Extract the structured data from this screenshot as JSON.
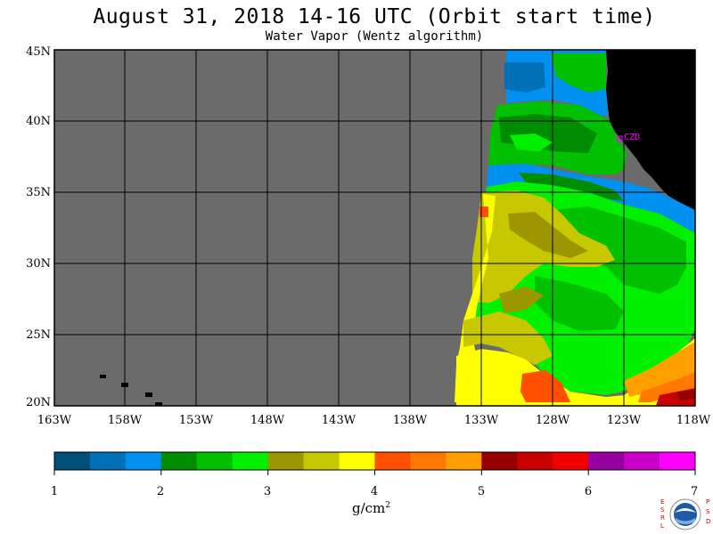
{
  "title": "August 31, 2018  14-16 UTC  (Orbit start time)",
  "subtitle": "Water Vapor (Wentz algorithm)",
  "map": {
    "lat_labels": [
      "45N",
      "40N",
      "35N",
      "30N",
      "25N",
      "20N"
    ],
    "lon_labels": [
      "163W",
      "158W",
      "153W",
      "148W",
      "143W",
      "138W",
      "133W",
      "128W",
      "123W",
      "118W"
    ],
    "station_label": "CZD",
    "colors": {
      "no_data": "#6b6b6b",
      "land": "#000000",
      "grid": "#000000",
      "station": "#ff00ff"
    }
  },
  "colorbar": {
    "tick_labels": [
      "1",
      "2",
      "3",
      "4",
      "5",
      "6",
      "7"
    ],
    "units_label": "g/cm",
    "units_exponent": "2",
    "colors": [
      "#00507a",
      "#0070b8",
      "#0090f0",
      "#008c00",
      "#00c000",
      "#00f000",
      "#9c9600",
      "#c8c800",
      "#ffff00",
      "#ff5000",
      "#ff7800",
      "#ffa000",
      "#960000",
      "#c80000",
      "#f00000",
      "#9600a0",
      "#c800c8",
      "#ff00ff"
    ]
  },
  "logo": {
    "left_letters": "ESRL",
    "right_letters": "PSD",
    "center_text": "NOAA"
  }
}
